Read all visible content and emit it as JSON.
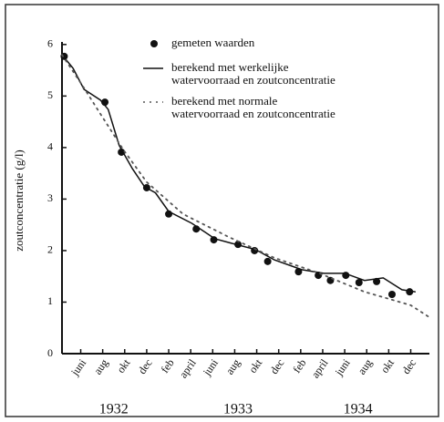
{
  "chart_data": {
    "type": "line",
    "y_label": "zoutconcentratie (g/l)",
    "xlim": [
      4.3,
      37.7
    ],
    "ylim": [
      0,
      6.05
    ],
    "yticks": [
      0,
      1,
      2,
      3,
      4,
      5,
      6
    ],
    "xticks": [
      {
        "value": 6,
        "label": "juni"
      },
      {
        "value": 8,
        "label": "aug"
      },
      {
        "value": 10,
        "label": "okt"
      },
      {
        "value": 12,
        "label": "dec"
      },
      {
        "value": 14,
        "label": "feb"
      },
      {
        "value": 16,
        "label": "april"
      },
      {
        "value": 18,
        "label": "juni"
      },
      {
        "value": 20,
        "label": "aug"
      },
      {
        "value": 22,
        "label": "okt"
      },
      {
        "value": 24,
        "label": "dec"
      },
      {
        "value": 26,
        "label": "feb"
      },
      {
        "value": 28,
        "label": "april"
      },
      {
        "value": 30,
        "label": "juni"
      },
      {
        "value": 32,
        "label": "aug"
      },
      {
        "value": 34,
        "label": "okt"
      },
      {
        "value": 36,
        "label": "dec"
      }
    ],
    "year_labels": [
      {
        "value": 9,
        "label": "1932"
      },
      {
        "value": 20.3,
        "label": "1933"
      },
      {
        "value": 31.2,
        "label": "1934"
      }
    ],
    "series": [
      {
        "name": [
          "gemeten waarden"
        ],
        "color": "#111",
        "style": "dots",
        "x": [
          4.5,
          8.2,
          9.7,
          12.0,
          14.0,
          16.5,
          18.1,
          20.3,
          21.8,
          23.0,
          25.8,
          27.6,
          28.7,
          30.1,
          31.3,
          32.9,
          34.3,
          35.9
        ],
        "values": [
          5.77,
          4.88,
          3.91,
          3.22,
          2.71,
          2.42,
          2.21,
          2.12,
          2.0,
          1.79,
          1.59,
          1.52,
          1.42,
          1.52,
          1.38,
          1.4,
          1.15,
          1.2
        ]
      },
      {
        "name": [
          "berekend met werkelijke",
          "watervoorraad en zoutconcentratie"
        ],
        "color": "#111",
        "style": "solid",
        "x": [
          4.3,
          5.3,
          6.3,
          7.8,
          8.5,
          9.5,
          10.7,
          11.8,
          12.8,
          14.0,
          16.1,
          18.2,
          20.1,
          21.9,
          23.6,
          26.1,
          28.1,
          30.0,
          31.8,
          33.5,
          35.2,
          36.4
        ],
        "values": [
          5.8,
          5.54,
          5.13,
          4.92,
          4.74,
          4.04,
          3.59,
          3.24,
          3.12,
          2.76,
          2.53,
          2.23,
          2.12,
          2.02,
          1.82,
          1.63,
          1.56,
          1.56,
          1.42,
          1.47,
          1.24,
          1.2
        ]
      },
      {
        "name": [
          "berekend met normale",
          "watervoorraad en zoutconcentratie"
        ],
        "color": "#555",
        "style": "dotted",
        "x": [
          4.3,
          6.2,
          7.8,
          9.9,
          12.0,
          15.3,
          19.4,
          23.6,
          27.7,
          31.8,
          36.0,
          37.6
        ],
        "values": [
          5.8,
          5.19,
          4.65,
          3.95,
          3.33,
          2.71,
          2.27,
          1.86,
          1.56,
          1.2,
          0.94,
          0.72
        ]
      }
    ]
  }
}
